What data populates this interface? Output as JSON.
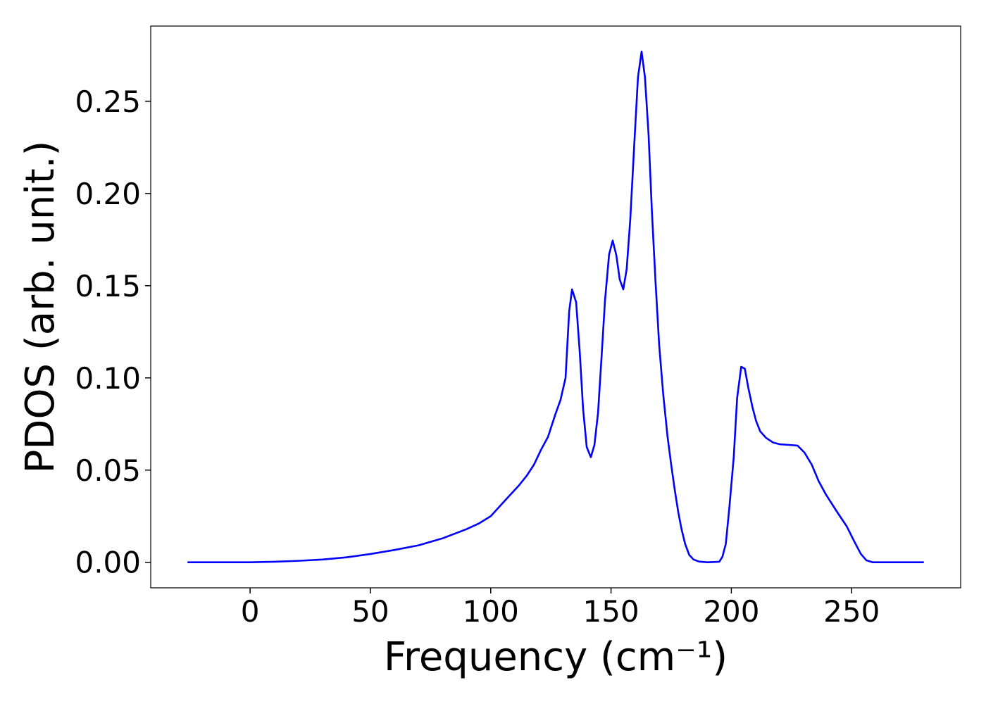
{
  "chart_data": {
    "type": "line",
    "xlabel": "Frequency (cm⁻¹)",
    "ylabel": "PDOS (arb. unit.)",
    "x": [
      -26,
      0,
      10,
      20,
      30,
      40,
      50,
      60,
      70,
      80,
      90,
      95,
      100,
      106.3,
      111.6,
      115,
      118,
      120.9,
      123.8,
      126.8,
      129,
      131.1,
      132.6,
      133.8,
      135.5,
      137,
      138.4,
      139.9,
      141.6,
      143.1,
      144.6,
      146,
      147.5,
      149.2,
      150.7,
      152.2,
      153.6,
      155.1,
      156.5,
      158,
      159.8,
      161.2,
      162.7,
      164.1,
      165.6,
      167,
      168.5,
      170,
      171.7,
      173.5,
      175,
      176.4,
      177.9,
      179.3,
      180.8,
      182.5,
      184.3,
      186.6,
      190,
      195,
      196.3,
      197.7,
      199.2,
      201,
      202.4,
      204.1,
      205.6,
      207,
      208.8,
      210.3,
      212,
      214.4,
      217.3,
      220.2,
      224.6,
      227.5,
      230.4,
      233.4,
      236.3,
      239.2,
      243.6,
      248,
      250.9,
      253.8,
      256.1,
      258.8,
      280
    ],
    "series": [
      {
        "name": "PDOS",
        "color": "#0000ff",
        "values": [
          0,
          0,
          0.0003,
          0.0008,
          0.0015,
          0.0027,
          0.0045,
          0.0067,
          0.0092,
          0.013,
          0.018,
          0.021,
          0.025,
          0.034,
          0.0415,
          0.047,
          0.053,
          0.061,
          0.068,
          0.08,
          0.088,
          0.1,
          0.136,
          0.148,
          0.141,
          0.114,
          0.083,
          0.0625,
          0.057,
          0.0636,
          0.081,
          0.11,
          0.142,
          0.167,
          0.1745,
          0.1665,
          0.1535,
          0.148,
          0.159,
          0.186,
          0.23,
          0.263,
          0.277,
          0.263,
          0.232,
          0.19,
          0.152,
          0.118,
          0.091,
          0.068,
          0.053,
          0.04,
          0.0275,
          0.018,
          0.01,
          0.004,
          0.0015,
          0.0004,
          0,
          0.0003,
          0.003,
          0.01,
          0.03,
          0.057,
          0.089,
          0.106,
          0.105,
          0.095,
          0.084,
          0.0766,
          0.071,
          0.0675,
          0.065,
          0.064,
          0.0636,
          0.0633,
          0.0595,
          0.053,
          0.044,
          0.037,
          0.028,
          0.0194,
          0.0118,
          0.0046,
          0.0011,
          0,
          0
        ]
      }
    ],
    "xlim": [
      -41.3,
      295.3
    ],
    "ylim": [
      -0.01385,
      0.2908
    ],
    "xticks": [
      0,
      50,
      100,
      150,
      200,
      250
    ],
    "yticks": [
      {
        "value": 0,
        "label": "0.00"
      },
      {
        "value": 0.05,
        "label": "0.05"
      },
      {
        "value": 0.1,
        "label": "0.10"
      },
      {
        "value": 0.15,
        "label": "0.15"
      },
      {
        "value": 0.2,
        "label": "0.20"
      },
      {
        "value": 0.25,
        "label": "0.25"
      }
    ],
    "grid": false
  }
}
